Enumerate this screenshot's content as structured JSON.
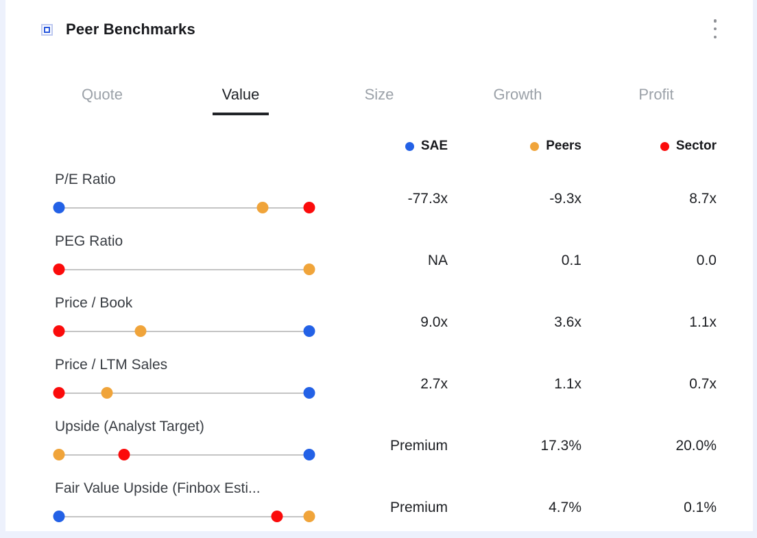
{
  "header": {
    "title": "Peer Benchmarks"
  },
  "tabs": {
    "items": [
      {
        "label": "Quote",
        "active": false
      },
      {
        "label": "Value",
        "active": true
      },
      {
        "label": "Size",
        "active": false
      },
      {
        "label": "Growth",
        "active": false
      },
      {
        "label": "Profit",
        "active": false
      }
    ]
  },
  "legend": {
    "items": [
      {
        "label": "SAE",
        "series": "sae"
      },
      {
        "label": "Peers",
        "series": "peers"
      },
      {
        "label": "Sector",
        "series": "sector"
      }
    ]
  },
  "colors": {
    "sae": "#2361e6",
    "peers": "#f0a43a",
    "sector": "#fb0b0b"
  },
  "table": {
    "rows": [
      {
        "label": "P/E Ratio",
        "values": [
          "-77.3x",
          "-9.3x",
          "8.7x"
        ],
        "dots": [
          {
            "series": "sae",
            "pos": 0
          },
          {
            "series": "peers",
            "pos": 81.4
          },
          {
            "series": "sector",
            "pos": 100
          }
        ]
      },
      {
        "label": "PEG Ratio",
        "values": [
          "NA",
          "0.1",
          "0.0"
        ],
        "dots": [
          {
            "series": "sector",
            "pos": 0
          },
          {
            "series": "peers",
            "pos": 100
          }
        ]
      },
      {
        "label": "Price / Book",
        "values": [
          "9.0x",
          "3.6x",
          "1.1x"
        ],
        "dots": [
          {
            "series": "sector",
            "pos": 0
          },
          {
            "series": "peers",
            "pos": 32.6
          },
          {
            "series": "sae",
            "pos": 100
          }
        ]
      },
      {
        "label": "Price / LTM Sales",
        "values": [
          "2.7x",
          "1.1x",
          "0.7x"
        ],
        "dots": [
          {
            "series": "sector",
            "pos": 0
          },
          {
            "series": "peers",
            "pos": 19.2
          },
          {
            "series": "sae",
            "pos": 100
          }
        ]
      },
      {
        "label": "Upside (Analyst Target)",
        "values": [
          "Premium",
          "17.3%",
          "20.0%"
        ],
        "dots": [
          {
            "series": "peers",
            "pos": 0
          },
          {
            "series": "sector",
            "pos": 26
          },
          {
            "series": "sae",
            "pos": 100
          }
        ]
      },
      {
        "label": "Fair Value Upside (Finbox Esti...",
        "values": [
          "Premium",
          "4.7%",
          "0.1%"
        ],
        "dots": [
          {
            "series": "sae",
            "pos": 0
          },
          {
            "series": "sector",
            "pos": 87.1
          },
          {
            "series": "peers",
            "pos": 100
          }
        ]
      }
    ]
  }
}
